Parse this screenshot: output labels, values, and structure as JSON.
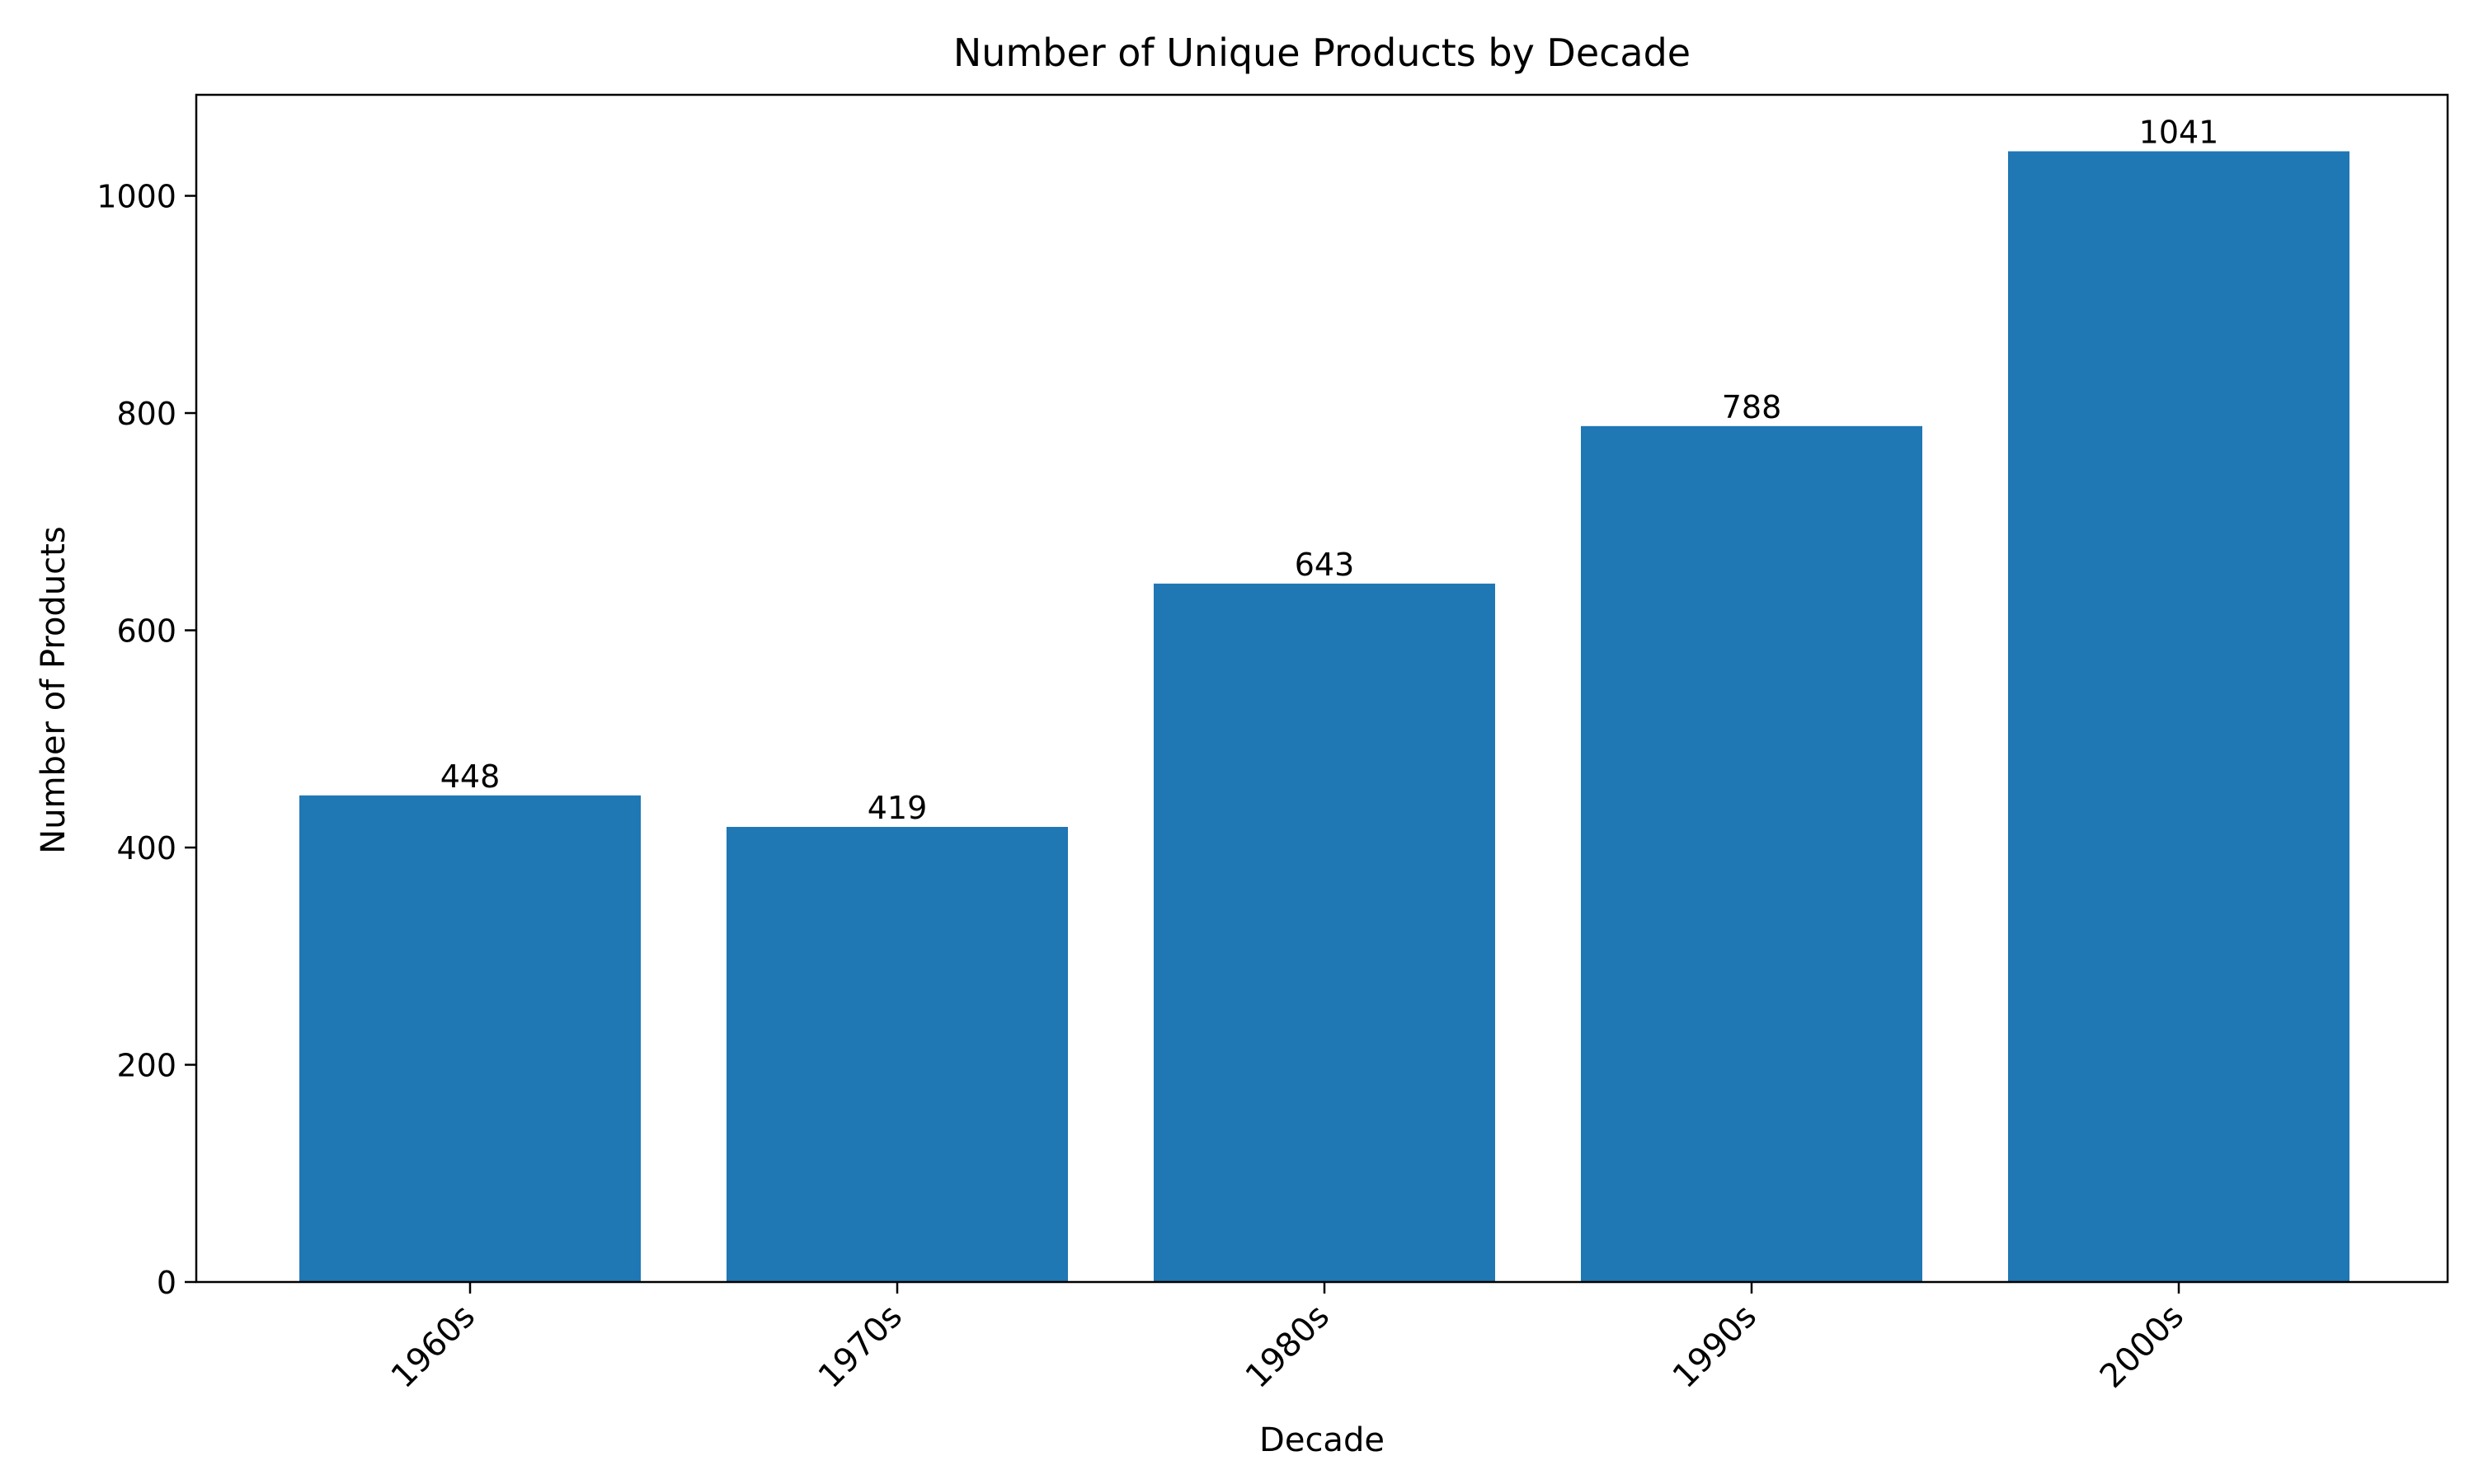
{
  "chart_data": {
    "type": "bar",
    "title": "Number of Unique Products by Decade",
    "xlabel": "Decade",
    "ylabel": "Number of Products",
    "categories": [
      "1960s",
      "1970s",
      "1980s",
      "1990s",
      "2000s"
    ],
    "values": [
      448,
      419,
      643,
      788,
      1041
    ],
    "data_labels": [
      "448",
      "419",
      "643",
      "788",
      "1041"
    ],
    "yticks": [
      0,
      200,
      400,
      600,
      800,
      1000
    ],
    "ytick_labels": [
      "0",
      "200",
      "400",
      "600",
      "800",
      "1000"
    ],
    "ylim": [
      0,
      1093
    ],
    "grid": false,
    "legend": "none",
    "xtick_rotation_deg": 45,
    "colors": {
      "bar": "#1f77b4",
      "axis": "#000000",
      "text": "#000000",
      "background": "#ffffff"
    }
  }
}
